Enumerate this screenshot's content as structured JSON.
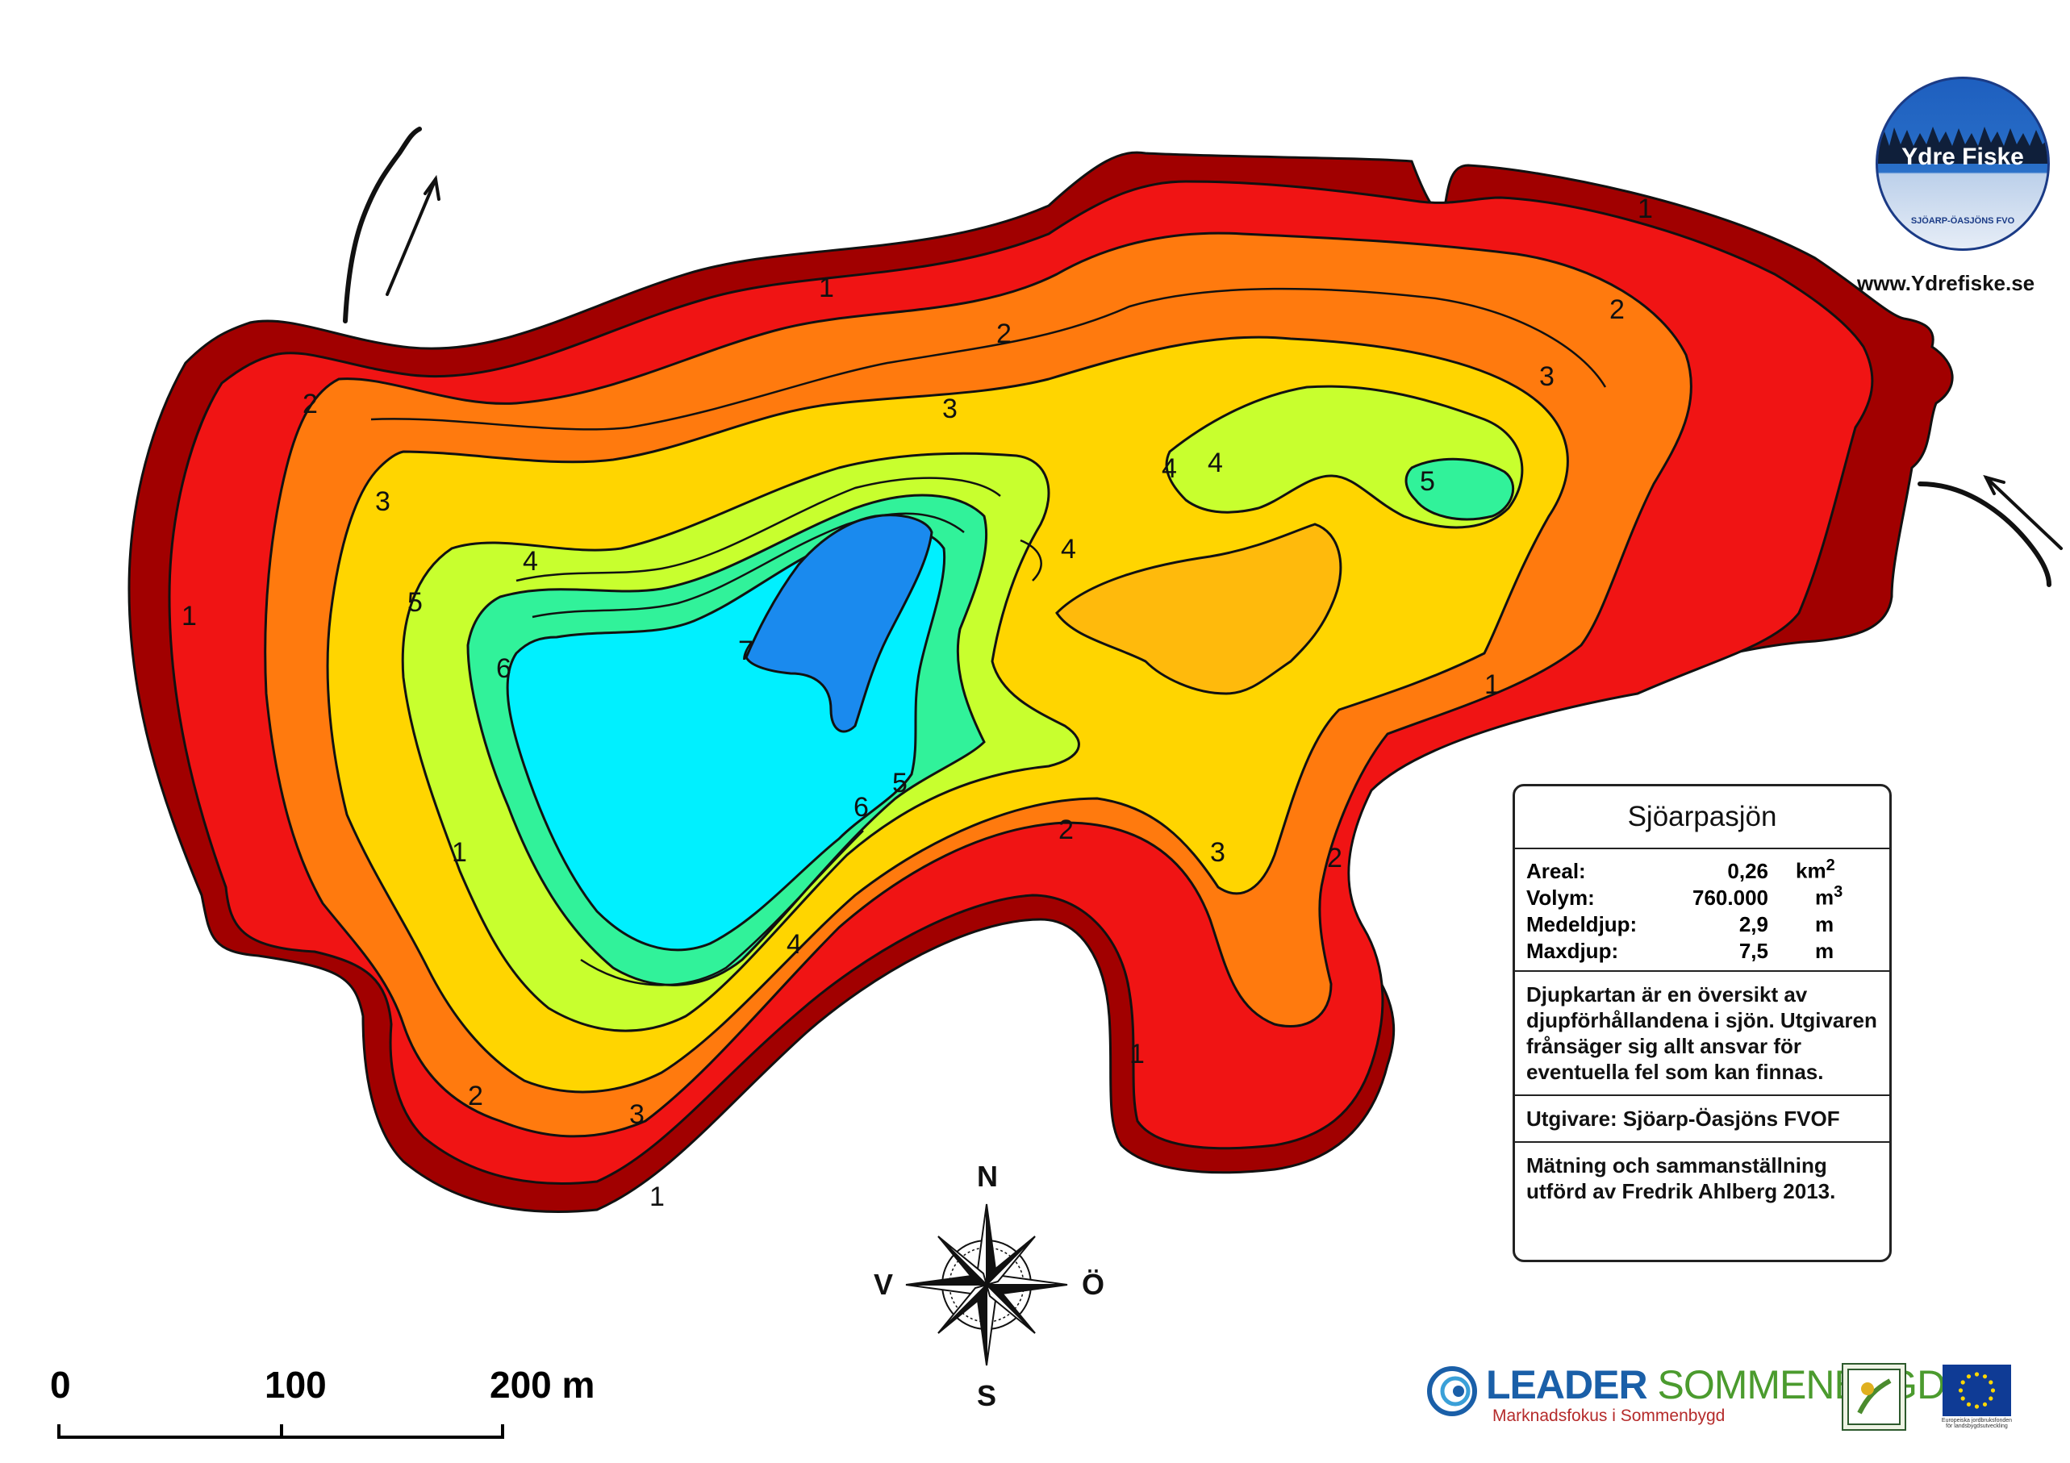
{
  "map": {
    "lake_name": "Sjöarpasjön",
    "depth_contour_unit": "m",
    "contour_labels": [
      "1",
      "1",
      "1",
      "1",
      "1",
      "1",
      "1",
      "2",
      "2",
      "2",
      "2",
      "2",
      "2",
      "3",
      "3",
      "3",
      "3",
      "3",
      "4",
      "4",
      "4",
      "4",
      "4",
      "5",
      "5",
      "5",
      "6",
      "6",
      "7"
    ],
    "inflow_outflow_arrows": 2,
    "colors": {
      "depth_0_1": "#a10000",
      "depth_1_2": "#f01414",
      "depth_2_3": "#ff7a0e",
      "depth_3_4": "#ffd500",
      "depth_3_4_inner": "#ffba0c",
      "depth_4_5": "#c8ff2e",
      "depth_5_6": "#31f29a",
      "depth_6_7": "#00f0ff",
      "depth_7": "#1a8aee"
    }
  },
  "info": {
    "title": "Sjöarpasjön",
    "stats": [
      {
        "label": "Areal:",
        "value": "0,26",
        "unit": "km",
        "sup": "2"
      },
      {
        "label": "Volym:",
        "value": "760.000",
        "unit": "m",
        "sup": "3"
      },
      {
        "label": "Medeldjup:",
        "value": "2,9",
        "unit": "m",
        "sup": ""
      },
      {
        "label": "Maxdjup:",
        "value": "7,5",
        "unit": "m",
        "sup": ""
      }
    ],
    "disclaimer": "Djupkartan är en översikt av djupförhållandena i sjön. Utgivaren frånsäger sig allt ansvar för eventuella fel som kan finnas.",
    "publisher": "Utgivare: Sjöarp-Öasjöns FVOF",
    "credits": "Mätning och sammanställning utförd av Fredrik Ahlberg 2013."
  },
  "compass": {
    "n": "N",
    "s": "S",
    "w": "V",
    "e": "Ö"
  },
  "scale_bar": {
    "labels": [
      "0",
      "100",
      "200 m"
    ],
    "ticks_m": [
      0,
      100,
      200
    ]
  },
  "logos": {
    "ydre_title": "Ydre Fiske",
    "ydre_sub": "SJÖARP-ÖASJÖNS FVO",
    "ydre_url": "www.Ydrefiske.se",
    "leader_main": "LEADER",
    "leader_region": "SOMMENBYGD",
    "leader_tagline": "Marknadsfokus i Sommenbygd",
    "eu_caption": "Europeiska jordbruksfonden för landsbygdsutveckling"
  }
}
